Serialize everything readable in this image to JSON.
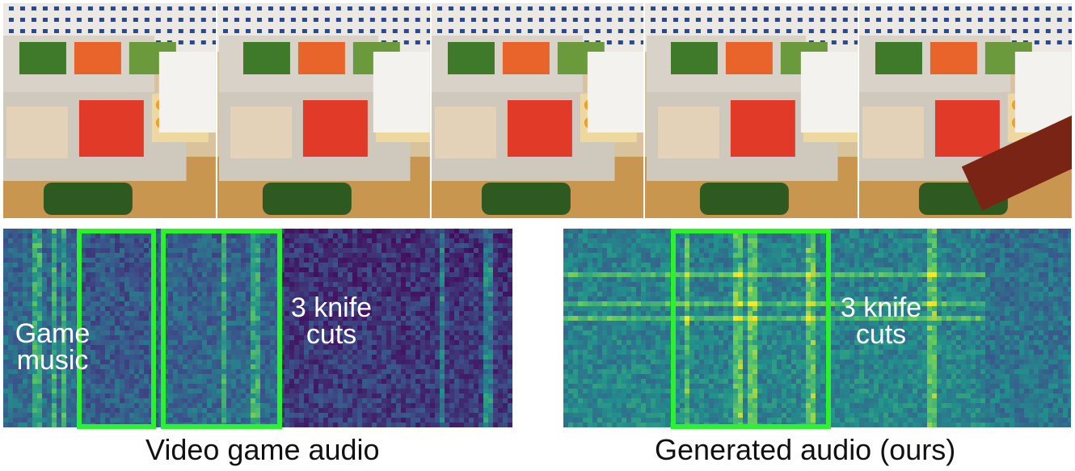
{
  "frames": [
    {
      "id": "frame-1"
    },
    {
      "id": "frame-2"
    },
    {
      "id": "frame-3"
    },
    {
      "id": "frame-4"
    },
    {
      "id": "frame-5"
    }
  ],
  "left_panel": {
    "label_game_music": "Game\nmusic",
    "label_knife_cuts": "3 knife\ncuts",
    "caption": "Video game audio"
  },
  "right_panel": {
    "label_knife_cuts": "3 knife\ncuts",
    "caption": "Generated audio (ours)"
  },
  "colors": {
    "highlight": "#2cf22c",
    "spectrogram_low": "#440154",
    "spectrogram_mid": "#21918c",
    "spectrogram_high": "#fde725"
  }
}
